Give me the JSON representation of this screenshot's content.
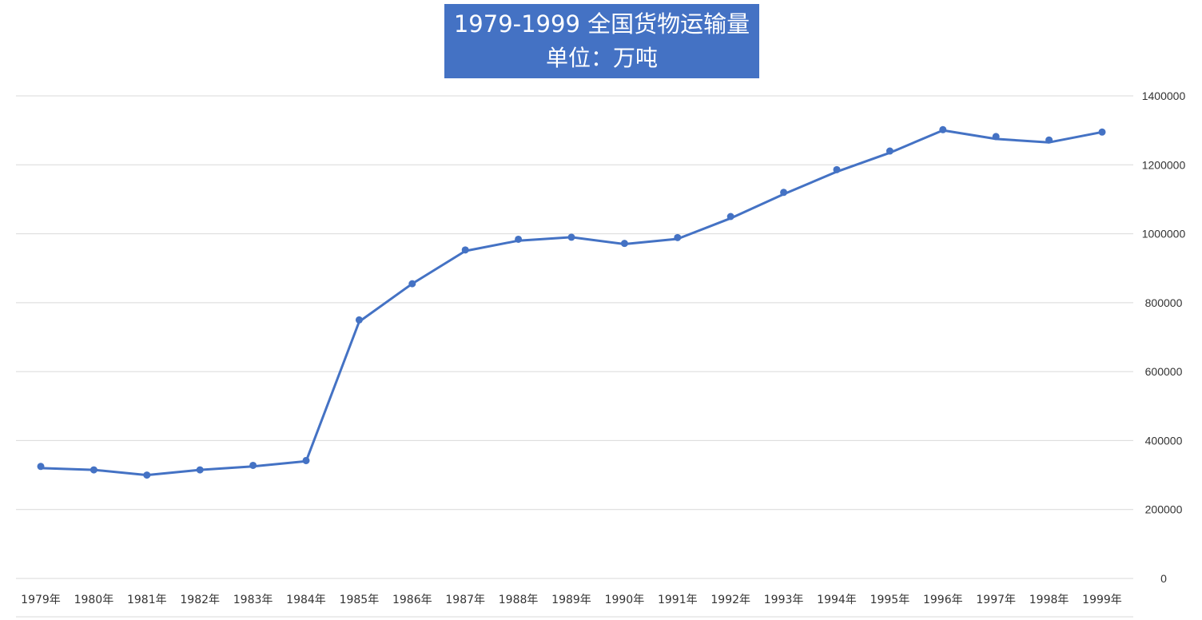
{
  "title_line1": "1979-1999 全国货物运输量",
  "title_line2": "单位：万吨",
  "colors": {
    "title_bg": "#4472C4",
    "title_text": "#ffffff",
    "line": "#4472C4",
    "gridline": "#d9d9d9",
    "axis_text": "#333333"
  },
  "chart_data": {
    "type": "line",
    "title": "1979-1999 全国货物运输量",
    "subtitle": "单位：万吨",
    "xlabel": "",
    "ylabel": "",
    "categories": [
      "1979年",
      "1980年",
      "1981年",
      "1982年",
      "1983年",
      "1984年",
      "1985年",
      "1986年",
      "1987年",
      "1988年",
      "1989年",
      "1990年",
      "1991年",
      "1992年",
      "1993年",
      "1994年",
      "1995年",
      "1996年",
      "1997年",
      "1998年",
      "1999年"
    ],
    "y_ticks": [
      "0",
      "200000",
      "400000",
      "600000",
      "800000",
      "1000000",
      "1200000",
      "1400000"
    ],
    "ylim": [
      0,
      1400000
    ],
    "y_axis_position": "right",
    "grid": true,
    "legend": "none",
    "series": [
      {
        "values": [
          320000,
          315000,
          300000,
          315000,
          325000,
          340000,
          745000,
          855000,
          950000,
          980000,
          990000,
          970000,
          985000,
          1045000,
          1115000,
          1180000,
          1235000,
          1300000,
          1275000,
          1265000,
          1295000
        ],
        "markers": [
          325000,
          315000,
          300000,
          315000,
          328000,
          342000,
          750000,
          855000,
          953000,
          984000,
          990000,
          972000,
          989000,
          1050000,
          1120000,
          1186000,
          1240000,
          1302000,
          1282000,
          1272000,
          1295000
        ]
      }
    ]
  }
}
